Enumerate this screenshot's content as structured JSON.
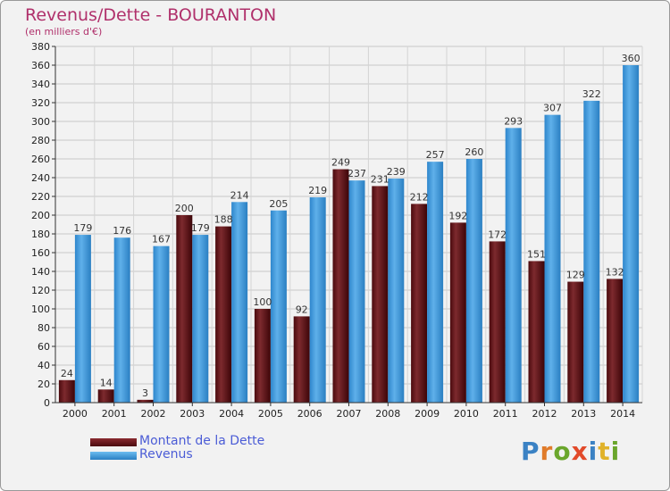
{
  "title": "Revenus/Dette - BOURANTON",
  "subtitle": "(en milliers d'€)",
  "logo": "Proxiti",
  "colors": {
    "dette": "#6b1116",
    "revenus": "#3b97dd",
    "title": "#b0306b",
    "legend_text": "#4b5cd6"
  },
  "chart_data": {
    "type": "bar",
    "title": "Revenus/Dette - BOURANTON",
    "subtitle": "(en milliers d'€)",
    "categories": [
      "2000",
      "2001",
      "2002",
      "2003",
      "2004",
      "2005",
      "2006",
      "2007",
      "2008",
      "2009",
      "2010",
      "2011",
      "2012",
      "2013",
      "2014"
    ],
    "series": [
      {
        "name": "Montant de la Dette",
        "values": [
          24,
          14,
          3,
          200,
          188,
          100,
          92,
          249,
          231,
          212,
          192,
          172,
          151,
          129,
          132
        ]
      },
      {
        "name": "Revenus",
        "values": [
          179,
          176,
          167,
          179,
          214,
          205,
          219,
          237,
          239,
          257,
          260,
          293,
          307,
          322,
          360
        ]
      }
    ],
    "ylim": [
      0,
      380
    ],
    "ytick_step": 20,
    "grid": true,
    "legend": "bottom-left"
  }
}
